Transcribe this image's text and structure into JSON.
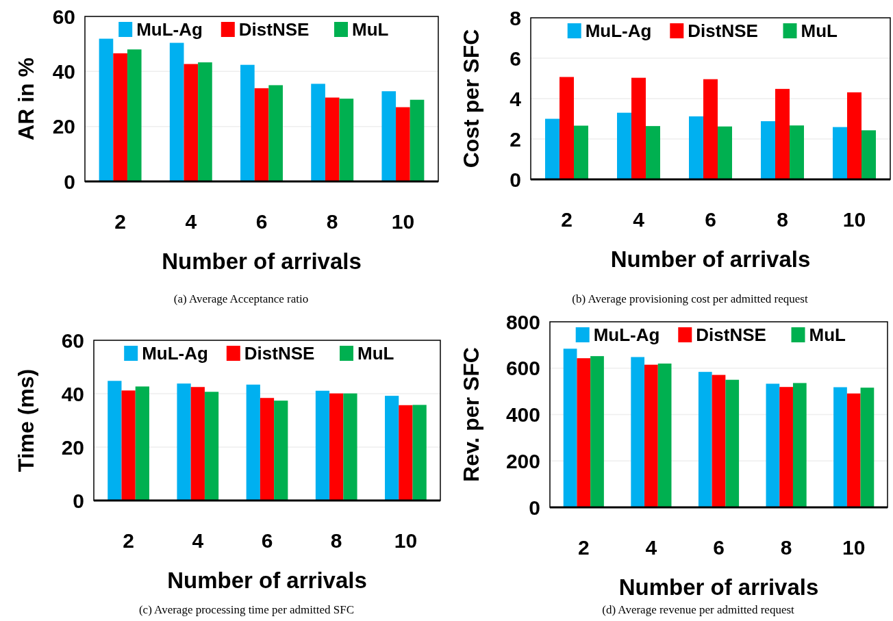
{
  "chart_data": [
    {
      "type": "bar",
      "categories": [
        "2",
        "4",
        "6",
        "8",
        "10"
      ],
      "xlabel": "Number of arrivals",
      "ylabel": "AR in %",
      "ylim": [
        0,
        60
      ],
      "yticks": [
        0,
        20,
        40,
        60
      ],
      "grid": "y",
      "legend": "top",
      "annotations": [
        "(a)  Average Acceptance ratio"
      ],
      "series": [
        {
          "name": "MuL-Ag",
          "color": "#00b0f0",
          "values": [
            51.9,
            50.4,
            42.4,
            35.5,
            32.8
          ]
        },
        {
          "name": "DistNSE",
          "color": "#ff0000",
          "values": [
            46.6,
            42.7,
            33.9,
            30.5,
            27.0
          ]
        },
        {
          "name": "MuL",
          "color": "#00b050",
          "values": [
            48.0,
            43.3,
            35.0,
            30.1,
            29.7
          ]
        }
      ]
    },
    {
      "type": "bar",
      "categories": [
        "2",
        "4",
        "6",
        "8",
        "10"
      ],
      "xlabel": "Number of arrivals",
      "ylabel": "Cost per SFC",
      "ylim": [
        0,
        8
      ],
      "yticks": [
        0,
        2,
        4,
        6,
        8
      ],
      "grid": "y",
      "legend": "top",
      "annotations": [
        "(b)  Average provisioning cost per admitted request"
      ],
      "series": [
        {
          "name": "MuL-Ag",
          "color": "#00b0f0",
          "values": [
            3.0,
            3.3,
            3.12,
            2.88,
            2.59
          ]
        },
        {
          "name": "DistNSE",
          "color": "#ff0000",
          "values": [
            5.07,
            5.03,
            4.96,
            4.48,
            4.31
          ]
        },
        {
          "name": "MuL",
          "color": "#00b050",
          "values": [
            2.66,
            2.64,
            2.62,
            2.67,
            2.43
          ]
        }
      ]
    },
    {
      "type": "bar",
      "categories": [
        "2",
        "4",
        "6",
        "8",
        "10"
      ],
      "xlabel": "Number of arrivals",
      "ylabel": "Time (ms)",
      "ylim": [
        0,
        60
      ],
      "yticks": [
        0,
        20,
        40,
        60
      ],
      "grid": "y",
      "legend": "top",
      "annotations": [
        "(c)  Average processing time per admitted SFC"
      ],
      "series": [
        {
          "name": "MuL-Ag",
          "color": "#00b0f0",
          "values": [
            44.8,
            43.8,
            43.4,
            41.1,
            39.2
          ]
        },
        {
          "name": "DistNSE",
          "color": "#ff0000",
          "values": [
            41.2,
            42.5,
            38.4,
            40.1,
            35.7
          ]
        },
        {
          "name": "MuL",
          "color": "#00b050",
          "values": [
            42.7,
            40.7,
            37.4,
            40.1,
            35.8
          ]
        }
      ]
    },
    {
      "type": "bar",
      "categories": [
        "2",
        "4",
        "6",
        "8",
        "10"
      ],
      "xlabel": "Number of arrivals",
      "ylabel": "Rev. per SFC",
      "ylim": [
        0,
        800
      ],
      "yticks": [
        0,
        200,
        400,
        600,
        800
      ],
      "grid": "y",
      "legend": "top",
      "annotations": [
        "(d)  Average revenue per admitted request"
      ],
      "series": [
        {
          "name": "MuL-Ag",
          "color": "#00b0f0",
          "values": [
            684,
            648,
            584,
            533,
            518
          ]
        },
        {
          "name": "DistNSE",
          "color": "#ff0000",
          "values": [
            643,
            615,
            571,
            519,
            491
          ]
        },
        {
          "name": "MuL",
          "color": "#00b050",
          "values": [
            652,
            620,
            550,
            536,
            516
          ]
        }
      ]
    }
  ]
}
